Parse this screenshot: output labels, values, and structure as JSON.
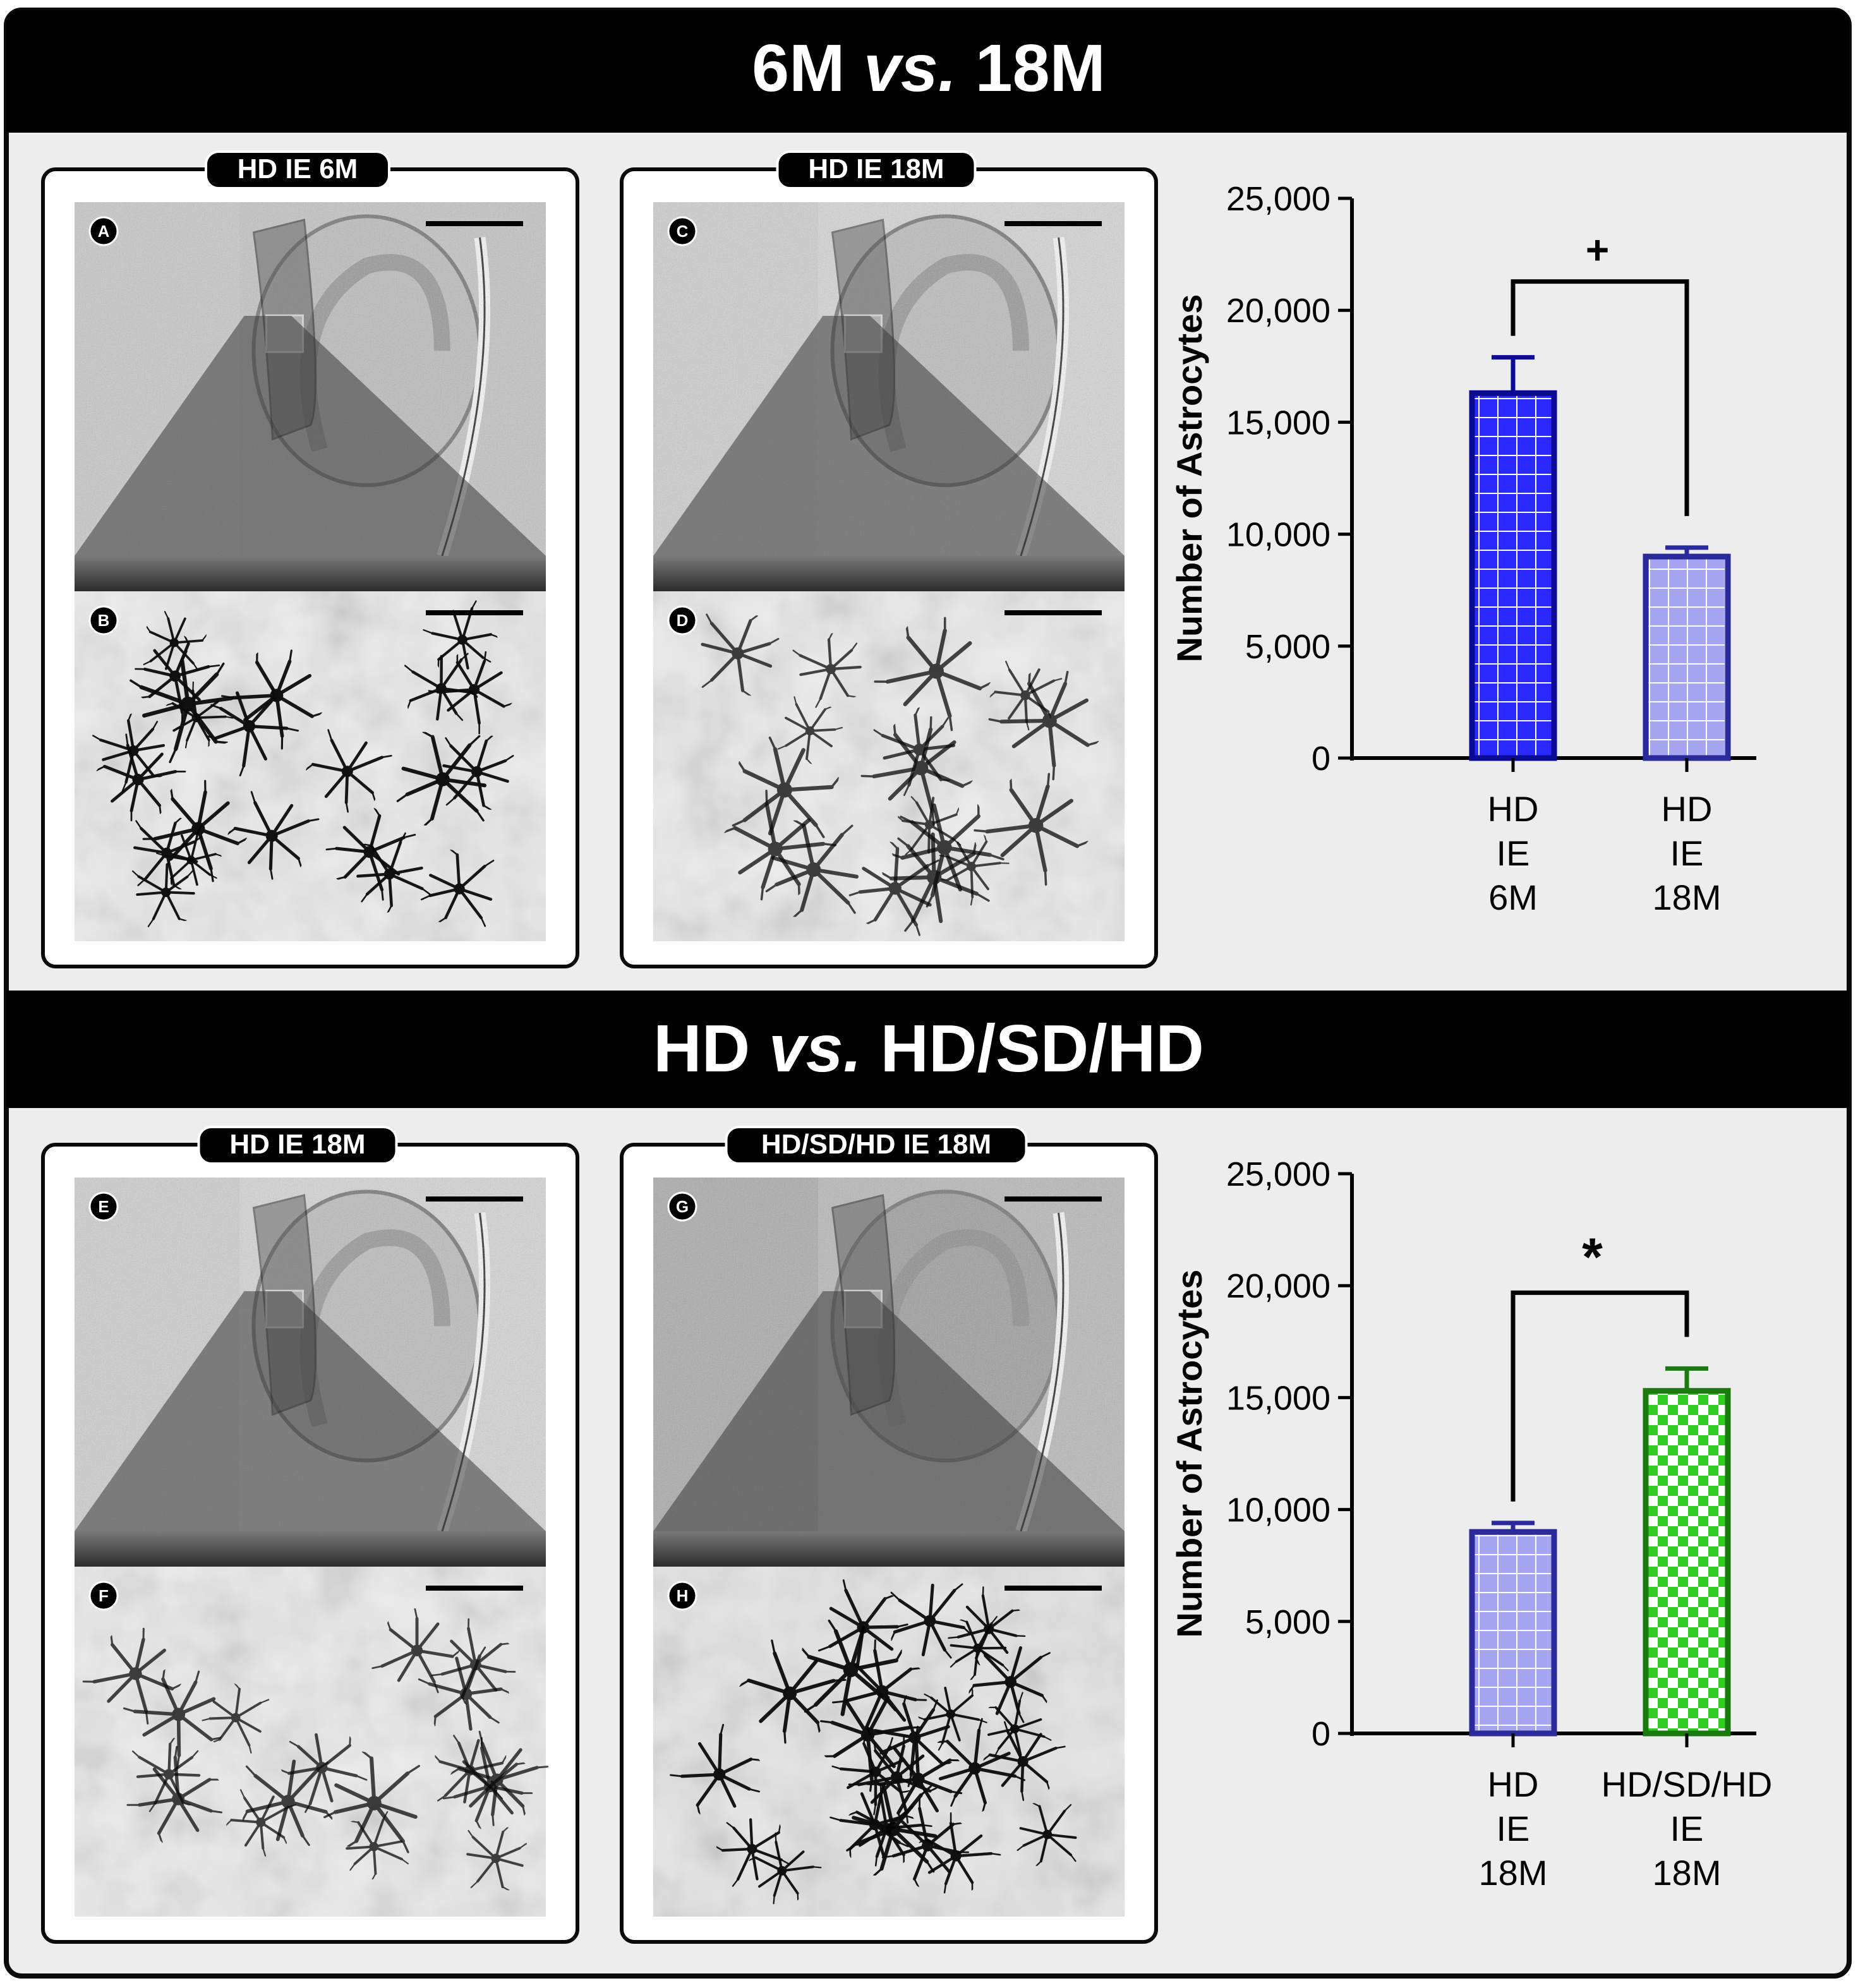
{
  "sections": [
    {
      "title_parts": [
        "6M ",
        "vs.",
        " 18M"
      ],
      "panels": [
        {
          "header": "HD IE 6M",
          "labels": [
            "A",
            "B"
          ],
          "tone": "normal"
        },
        {
          "header": "HD IE 18M",
          "labels": [
            "C",
            "D"
          ],
          "tone": "light"
        }
      ]
    },
    {
      "title_parts": [
        "HD ",
        "vs.",
        " HD/SD/HD"
      ],
      "panels": [
        {
          "header": "HD IE 18M",
          "labels": [
            "E",
            "F"
          ],
          "tone": "light"
        },
        {
          "header": "HD/SD/HD IE 18M",
          "labels": [
            "G",
            "H"
          ],
          "tone": "dark"
        }
      ]
    }
  ],
  "chart_data": [
    {
      "type": "bar",
      "ylabel": "Number of Astrocytes",
      "ylim": [
        0,
        25000
      ],
      "yticks": [
        0,
        5000,
        10000,
        15000,
        20000,
        25000
      ],
      "ytick_labels": [
        "0",
        "5,000",
        "10,000",
        "15,000",
        "20,000",
        "25,000"
      ],
      "categories": [
        [
          "HD",
          "IE",
          "6M"
        ],
        [
          "HD",
          "IE",
          "18M"
        ]
      ],
      "values": [
        16300,
        9000
      ],
      "errors": [
        1600,
        400
      ],
      "colors": {
        "bar_edges": [
          "#0a0a96",
          "#2a2a9a"
        ],
        "bar_fills": [
          "#2a2aff",
          "#9f9ff0"
        ]
      },
      "significance": {
        "from": 0,
        "to": 1,
        "symbol": "+"
      }
    },
    {
      "type": "bar",
      "ylabel": "Number of Astrocytes",
      "ylim": [
        0,
        25000
      ],
      "yticks": [
        0,
        5000,
        10000,
        15000,
        20000,
        25000
      ],
      "ytick_labels": [
        "0",
        "5,000",
        "10,000",
        "15,000",
        "20,000",
        "25,000"
      ],
      "categories": [
        [
          "HD",
          "IE",
          "18M"
        ],
        [
          "HD/SD/HD",
          "IE",
          "18M"
        ]
      ],
      "values": [
        9000,
        15300
      ],
      "errors": [
        400,
        1000
      ],
      "colors": {
        "bar_edges": [
          "#2a2a9a",
          "#1a7a10"
        ],
        "bar_fills": [
          "#9f9ff0",
          "#33cc22"
        ]
      },
      "significance": {
        "from": 0,
        "to": 1,
        "symbol": "*"
      }
    }
  ]
}
